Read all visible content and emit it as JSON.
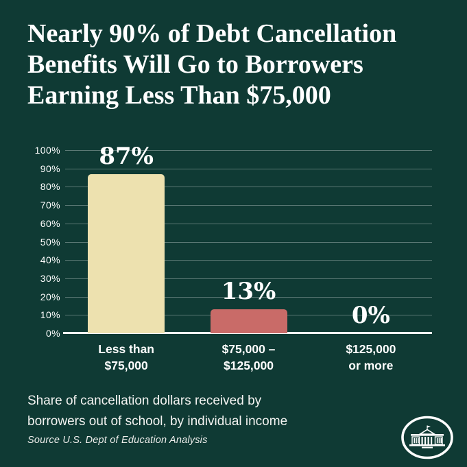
{
  "title": {
    "line1": "Nearly 90% of Debt Cancellation",
    "line2": "Benefits Will Go to Borrowers",
    "line3": "Earning Less Than $75,000"
  },
  "chart_data": {
    "type": "bar",
    "title": "Nearly 90% of Debt Cancellation Benefits Will Go to Borrowers Earning Less Than $75,000",
    "categories": [
      {
        "line1": "Less than",
        "line2": "$75,000"
      },
      {
        "line1": "$75,000 –",
        "line2": "$125,000"
      },
      {
        "line1": "$125,000",
        "line2": "or more"
      }
    ],
    "values": [
      87,
      13,
      0
    ],
    "value_labels": [
      "87%",
      "13%",
      "0%"
    ],
    "bar_colors": [
      "#EDE1AF",
      "#C96B68",
      "none"
    ],
    "y_ticks": [
      "0%",
      "10%",
      "20%",
      "30%",
      "40%",
      "50%",
      "60%",
      "70%",
      "80%",
      "90%",
      "100%"
    ],
    "ylim": [
      0,
      100
    ],
    "xlabel": "",
    "ylabel": "",
    "grid": true,
    "legend_position": "none"
  },
  "caption": {
    "line1": "Share of cancellation dollars received by",
    "line2": "borrowers out of school, by individual income"
  },
  "source": "Source U.S. Dept of Education Analysis",
  "logo": {
    "name": "white-house-logo"
  },
  "colors": {
    "background": "#0F3A34",
    "text": "#FFFFFF",
    "gridline": "rgba(255,255,255,0.32)",
    "bar_primary": "#EDE1AF",
    "bar_secondary": "#C96B68"
  }
}
